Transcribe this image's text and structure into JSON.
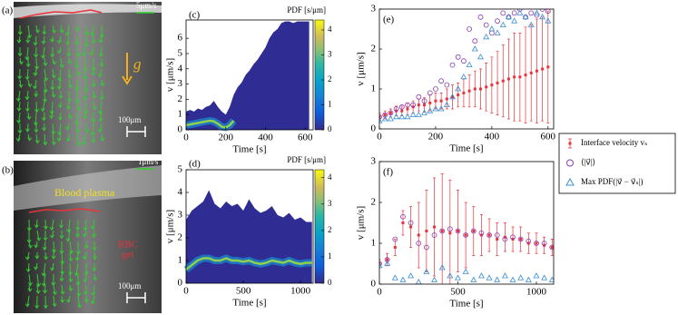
{
  "images": [
    {
      "panel_label": "(a)",
      "scale_arrow": "5μm/s",
      "scale_bar": "100μm",
      "gravity": "g⃗"
    },
    {
      "panel_label": "(b)",
      "scale_arrow": "1μm/s",
      "scale_bar": "100μm",
      "plasma_label": "Blood plasma",
      "gel_label": [
        "RBC",
        "gel"
      ]
    }
  ],
  "chart_data": [
    {
      "type": "heatmap",
      "panel_label": "(c)",
      "x_label": "Time [s]",
      "y_label": "v [μm/s]",
      "x": [
        0,
        20,
        40,
        60,
        80,
        100,
        120,
        140,
        160,
        180,
        200,
        220,
        240,
        260,
        280,
        300,
        320,
        340,
        360,
        380,
        400,
        420,
        440,
        460,
        480,
        500,
        520,
        540,
        560,
        580,
        600,
        620
      ],
      "series": [
        {
          "color": "#2f2c93",
          "values": [
            1.2,
            1.3,
            1.2,
            1.4,
            1.3,
            1.5,
            1.6,
            1.9,
            1.5,
            1.2,
            1.0,
            1.5,
            2.3,
            2.8,
            3.1,
            3.6,
            3.9,
            4.3,
            4.6,
            5.0,
            5.4,
            6.0,
            6.4,
            6.6,
            7.0,
            7.1,
            7.1,
            7.0,
            7.1,
            7.1,
            7.1,
            7.1
          ]
        },
        {
          "color": "#8fd14f",
          "values": [
            0.3,
            0.35,
            0.4,
            0.45,
            0.5,
            0.55,
            0.6,
            0.55,
            0.4,
            0.2,
            0.15,
            0.3,
            0.6,
            null,
            null,
            null,
            null,
            null,
            null,
            null,
            null,
            null,
            null,
            null,
            null,
            null,
            null,
            null,
            null,
            null,
            null,
            null
          ]
        }
      ],
      "xlim": [
        0,
        640
      ],
      "ylim": [
        0,
        7.2
      ],
      "xticks": [
        0,
        200,
        400,
        600
      ],
      "yticks": [
        0,
        1,
        2,
        3,
        4,
        5,
        6
      ],
      "colorbar": {
        "label": "PDF [s/μm]",
        "lim": [
          0,
          4.4
        ],
        "ticks": [
          0,
          1,
          2,
          3,
          4
        ]
      }
    },
    {
      "type": "heatmap",
      "panel_label": "(d)",
      "x_label": "Time [s]",
      "y_label": "v [μm/s]",
      "x": [
        0,
        50,
        100,
        150,
        200,
        250,
        300,
        350,
        400,
        450,
        500,
        550,
        600,
        650,
        700,
        750,
        800,
        850,
        900,
        950,
        1000,
        1050,
        1100
      ],
      "series": [
        {
          "color": "#2f2c93",
          "values": [
            2.8,
            3.2,
            3.4,
            3.6,
            4.1,
            3.5,
            3.3,
            3.6,
            3.4,
            3.5,
            3.2,
            3.7,
            3.3,
            3.1,
            3.2,
            3.4,
            3.0,
            2.9,
            3.1,
            2.8,
            2.9,
            2.7,
            2.7
          ]
        },
        {
          "color": "#8fd14f",
          "values": [
            0.6,
            0.8,
            1.0,
            1.1,
            1.1,
            1.0,
            1.0,
            1.1,
            1.0,
            1.0,
            0.95,
            1.0,
            0.9,
            0.85,
            0.9,
            1.0,
            0.95,
            0.9,
            1.0,
            0.9,
            0.85,
            0.9,
            0.9
          ]
        }
      ],
      "xlim": [
        0,
        1110
      ],
      "ylim": [
        0,
        5
      ],
      "xticks": [
        0,
        500,
        1000
      ],
      "yticks": [
        0,
        1,
        2,
        3,
        4,
        5
      ],
      "colorbar": {
        "label": "PDF [s/μm]",
        "lim": [
          0,
          4.3
        ],
        "ticks": [
          0,
          1,
          2,
          3,
          4
        ]
      }
    },
    {
      "type": "scatter",
      "panel_label": "(e)",
      "x_label": "Time [s]",
      "y_label": "v [μm/s]",
      "x": [
        0,
        20,
        40,
        60,
        80,
        100,
        120,
        140,
        160,
        180,
        200,
        220,
        240,
        260,
        280,
        300,
        320,
        340,
        360,
        380,
        400,
        420,
        440,
        460,
        480,
        500,
        520,
        540,
        560,
        580,
        600
      ],
      "series": [
        {
          "name": "Interface velocity vₛ",
          "color": "#e8333a",
          "marker": "errorbar",
          "values": [
            0.3,
            0.35,
            0.4,
            0.45,
            0.45,
            0.5,
            0.55,
            0.6,
            0.6,
            0.65,
            0.7,
            0.7,
            0.75,
            0.8,
            0.85,
            0.9,
            0.95,
            1.0,
            1.0,
            1.05,
            1.1,
            1.15,
            1.2,
            1.25,
            1.3,
            1.3,
            1.35,
            1.4,
            1.45,
            1.5,
            1.55
          ],
          "errors": [
            0.1,
            0.1,
            0.1,
            0.12,
            0.12,
            0.15,
            0.15,
            0.15,
            0.18,
            0.2,
            0.2,
            0.2,
            0.25,
            0.3,
            0.3,
            0.35,
            0.4,
            0.45,
            0.5,
            0.6,
            0.7,
            0.8,
            0.9,
            1.0,
            1.1,
            1.1,
            1.2,
            1.2,
            1.3,
            1.3,
            1.4
          ]
        },
        {
          "name": "⟨|v⃗|⟩",
          "color": "#8a3fb5",
          "marker": "circle",
          "values": [
            0.3,
            0.35,
            0.4,
            0.5,
            0.55,
            0.6,
            0.6,
            0.8,
            0.7,
            0.9,
            1.0,
            1.2,
            1.1,
            1.6,
            1.8,
            1.7,
            2.5,
            2.2,
            2.8,
            2.6,
            2.4,
            2.7,
            2.9,
            2.8,
            2.9,
            3.0,
            2.8,
            2.9,
            2.85,
            3.0,
            2.95
          ]
        },
        {
          "name": "Max PDF(|v⃗ − v⃗ₛ|)",
          "color": "#3a8fd6",
          "marker": "triangle",
          "values": [
            0.2,
            0.25,
            0.25,
            0.3,
            0.3,
            0.3,
            0.35,
            0.35,
            0.4,
            0.45,
            0.5,
            0.5,
            0.6,
            0.8,
            1.0,
            1.3,
            1.6,
            2.0,
            1.8,
            2.3,
            2.5,
            2.4,
            2.6,
            2.8,
            2.7,
            2.9,
            2.8,
            2.6,
            2.9,
            2.8,
            2.7
          ]
        }
      ],
      "xlim": [
        0,
        620
      ],
      "ylim": [
        0,
        3
      ],
      "xticks": [
        0,
        200,
        400,
        600
      ],
      "yticks": [
        0,
        1,
        2,
        3
      ]
    },
    {
      "type": "scatter",
      "panel_label": "(f)",
      "x_label": "Time [s]",
      "y_label": "v [μm/s]",
      "x": [
        0,
        50,
        100,
        150,
        200,
        250,
        300,
        350,
        400,
        450,
        500,
        550,
        600,
        650,
        700,
        750,
        800,
        850,
        900,
        950,
        1000,
        1050,
        1100
      ],
      "series": [
        {
          "color": "#e8333a",
          "marker": "errorbar",
          "values": [
            0.5,
            0.6,
            0.9,
            1.5,
            1.4,
            1.2,
            1.3,
            1.4,
            1.3,
            1.25,
            1.3,
            1.2,
            1.3,
            1.2,
            1.2,
            1.1,
            1.15,
            1.1,
            1.1,
            1.0,
            1.0,
            0.95,
            0.9
          ],
          "errors": [
            0.1,
            0.15,
            0.2,
            0.3,
            0.5,
            0.8,
            1.0,
            1.2,
            1.4,
            1.3,
            1.0,
            0.8,
            0.6,
            0.5,
            0.4,
            0.4,
            0.35,
            0.3,
            0.3,
            0.25,
            0.25,
            0.2,
            0.2
          ]
        },
        {
          "color": "#8a3fb5",
          "marker": "circle",
          "values": [
            0.5,
            0.6,
            1.1,
            1.65,
            1.5,
            1.0,
            0.9,
            1.2,
            1.3,
            1.35,
            1.3,
            1.2,
            1.3,
            1.25,
            1.2,
            1.2,
            1.1,
            1.15,
            1.1,
            1.05,
            1.0,
            1.0,
            0.9
          ]
        },
        {
          "color": "#3a8fd6",
          "marker": "triangle",
          "values": [
            0.45,
            0.5,
            0.15,
            0.1,
            0.2,
            0.05,
            0.3,
            0.1,
            0.4,
            0.2,
            0.15,
            0.3,
            0.1,
            0.2,
            0.15,
            0.1,
            0.2,
            0.1,
            0.15,
            0.1,
            0.2,
            0.15,
            0.1
          ]
        }
      ],
      "xlim": [
        0,
        1110
      ],
      "ylim": [
        0,
        3
      ],
      "xticks": [
        0,
        500,
        1000
      ],
      "yticks": [
        0,
        1,
        2,
        3
      ]
    }
  ]
}
